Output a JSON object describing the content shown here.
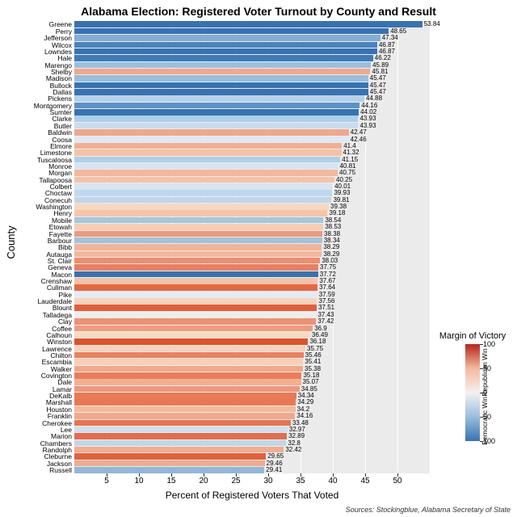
{
  "chart": {
    "type": "bar",
    "title": "Alabama Election: Registered Voter Turnout by County and Result",
    "y_axis_title": "County",
    "x_axis_title": "Percent of Registered Voters That Voted",
    "sources": "Sources: Stockingblue, Alabama Secretary of State",
    "background_color": "#ebebeb",
    "grid_color": "#ffffff",
    "xlim": [
      0,
      55
    ],
    "xticks": [
      5,
      10,
      15,
      20,
      25,
      30,
      35,
      40,
      45,
      50
    ],
    "bar_height": 7.5,
    "bar_gap": 0.85,
    "rows": [
      {
        "county": "Greene",
        "value": 53.84,
        "color": "#3773b3"
      },
      {
        "county": "Perry",
        "value": 48.65,
        "color": "#3773b3"
      },
      {
        "county": "Jefferson",
        "value": 47.34,
        "color": "#83aed5"
      },
      {
        "county": "Wilcox",
        "value": 46.87,
        "color": "#4b83bf"
      },
      {
        "county": "Lowndes",
        "value": 46.87,
        "color": "#3773b3"
      },
      {
        "county": "Hale",
        "value": 46.22,
        "color": "#3e7ab8"
      },
      {
        "county": "Marengo",
        "value": 45.89,
        "color": "#9bc0de"
      },
      {
        "county": "Shelby",
        "value": 45.81,
        "color": "#f1a88c"
      },
      {
        "county": "Madison",
        "value": 45.47,
        "color": "#99bedd"
      },
      {
        "county": "Bullock",
        "value": 45.47,
        "color": "#3773b3"
      },
      {
        "county": "Dallas",
        "value": 45.47,
        "color": "#3773b3"
      },
      {
        "county": "Pickens",
        "value": 44.88,
        "color": "#b7d1e8"
      },
      {
        "county": "Montgomery",
        "value": 44.16,
        "color": "#5c91c7"
      },
      {
        "county": "Sumter",
        "value": 44.02,
        "color": "#3773b3"
      },
      {
        "county": "Clarke",
        "value": 43.93,
        "color": "#add0e7"
      },
      {
        "county": "Butler",
        "value": 43.93,
        "color": "#c9dcef"
      },
      {
        "county": "Baldwin",
        "value": 42.47,
        "color": "#f0a78b"
      },
      {
        "county": "Coosa",
        "value": 42.46,
        "color": "#dde9f4"
      },
      {
        "county": "Elmore",
        "value": 41.4,
        "color": "#f2b093"
      },
      {
        "county": "Limestone",
        "value": 41.32,
        "color": "#f5c2a6"
      },
      {
        "county": "Tuscaloosa",
        "value": 41.15,
        "color": "#add0e7"
      },
      {
        "county": "Monroe",
        "value": 40.81,
        "color": "#d4e4f2"
      },
      {
        "county": "Morgan",
        "value": 40.75,
        "color": "#f3b99c"
      },
      {
        "county": "Tallapoosa",
        "value": 40.25,
        "color": "#f4c3a7"
      },
      {
        "county": "Colbert",
        "value": 40.01,
        "color": "#d6e5f3"
      },
      {
        "county": "Choctaw",
        "value": 39.93,
        "color": "#c0d8ec"
      },
      {
        "county": "Conecuh",
        "value": 39.81,
        "color": "#bed7eb"
      },
      {
        "county": "Washington",
        "value": 39.38,
        "color": "#f7d7bf"
      },
      {
        "county": "Henry",
        "value": 39.18,
        "color": "#f5c5a9"
      },
      {
        "county": "Mobile",
        "value": 38.54,
        "color": "#a4c7e1"
      },
      {
        "county": "Etowah",
        "value": 38.53,
        "color": "#f6cdb2"
      },
      {
        "county": "Fayette",
        "value": 38.38,
        "color": "#ef987b"
      },
      {
        "county": "Barbour",
        "value": 38.34,
        "color": "#a0c3de"
      },
      {
        "county": "Bibb",
        "value": 38.29,
        "color": "#f2b497"
      },
      {
        "county": "Autauga",
        "value": 38.29,
        "color": "#f3b99c"
      },
      {
        "county": "St. Clair",
        "value": 38.03,
        "color": "#ee8d70"
      },
      {
        "county": "Geneva",
        "value": 37.75,
        "color": "#eb7f5e"
      },
      {
        "county": "Macon",
        "value": 37.72,
        "color": "#3773b3"
      },
      {
        "county": "Crenshaw",
        "value": 37.67,
        "color": "#f4c3a7"
      },
      {
        "county": "Cullman",
        "value": 37.64,
        "color": "#e76743"
      },
      {
        "county": "Pike",
        "value": 37.59,
        "color": "#e2ecf6"
      },
      {
        "county": "Lauderdale",
        "value": 37.56,
        "color": "#f6d4bd"
      },
      {
        "county": "Blount",
        "value": 37.51,
        "color": "#e35f39"
      },
      {
        "county": "Talladega",
        "value": 37.43,
        "color": "#ebeef0"
      },
      {
        "county": "Clay",
        "value": 37.42,
        "color": "#ee9173"
      },
      {
        "county": "Coffee",
        "value": 36.9,
        "color": "#ef9c7f"
      },
      {
        "county": "Calhoun",
        "value": 36.49,
        "color": "#f5dbc5"
      },
      {
        "county": "Winston",
        "value": 36.18,
        "color": "#e05228"
      },
      {
        "county": "Lawrence",
        "value": 35.75,
        "color": "#f6d2bb"
      },
      {
        "county": "Chilton",
        "value": 35.46,
        "color": "#ec815f"
      },
      {
        "county": "Escambia",
        "value": 35.41,
        "color": "#f6d0b7"
      },
      {
        "county": "Walker",
        "value": 35.38,
        "color": "#f1a88c"
      },
      {
        "county": "Covington",
        "value": 35.18,
        "color": "#eb7c5a"
      },
      {
        "county": "Dale",
        "value": 35.07,
        "color": "#f2b093"
      },
      {
        "county": "Lamar",
        "value": 34.85,
        "color": "#ef987b"
      },
      {
        "county": "DeKalb",
        "value": 34.34,
        "color": "#ea7956"
      },
      {
        "county": "Marshall",
        "value": 34.29,
        "color": "#ea7754"
      },
      {
        "county": "Houston",
        "value": 34.2,
        "color": "#f3b99c"
      },
      {
        "county": "Franklin",
        "value": 34.16,
        "color": "#f1a88c"
      },
      {
        "county": "Cherokee",
        "value": 33.48,
        "color": "#ea7350"
      },
      {
        "county": "Lee",
        "value": 32.97,
        "color": "#cde0f1"
      },
      {
        "county": "Marion",
        "value": 32.89,
        "color": "#e86c49"
      },
      {
        "county": "Chambers",
        "value": 32.8,
        "color": "#bed7eb"
      },
      {
        "county": "Randolph",
        "value": 32.42,
        "color": "#f2ad8f"
      },
      {
        "county": "Cleburne",
        "value": 29.65,
        "color": "#e4603b"
      },
      {
        "county": "Jackson",
        "value": 29.46,
        "color": "#f1ab8f"
      },
      {
        "county": "Russell",
        "value": 29.41,
        "color": "#91b8d9"
      }
    ],
    "legend": {
      "title": "Margin of Victory",
      "rep_label": "Republican Win",
      "dem_label": "Democratic Win",
      "ticks": [
        100,
        50,
        0,
        50,
        100
      ],
      "gradient_colors": [
        "#b6241c",
        "#f3b99c",
        "#f3f2ee",
        "#99bedd",
        "#3773b3"
      ]
    }
  }
}
